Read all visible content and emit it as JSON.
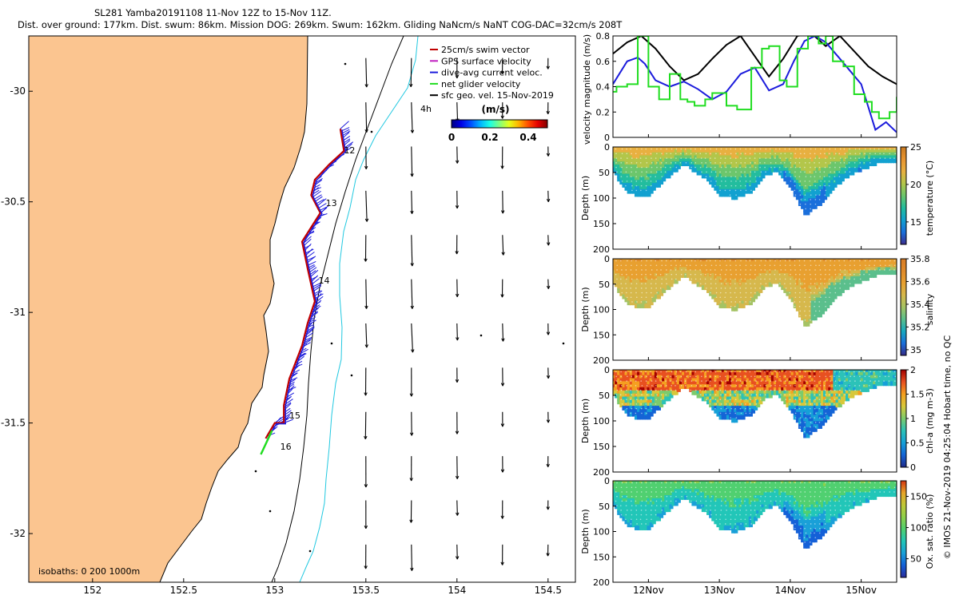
{
  "header": {
    "title_line1": "SL281 Yamba20191108 11-Nov 12Z to 15-Nov 11Z.",
    "title_line2": "Dist. over ground: 177km. Dist. swum: 86km. Mission DOG: 269km. Swum: 162km. Gliding NaNcm/s NaNT COG-DAC=32cm/s 208T"
  },
  "colors": {
    "land": "#fbc590",
    "track_dac": "#1c1cdc",
    "track_red": "#c00000",
    "gps": "#c020c0",
    "net": "#20dd20",
    "isobath_200": "#20c8e0",
    "isobath_1000": "#000000"
  },
  "chart_data": [
    {
      "type": "map",
      "title": "",
      "xlim": [
        151.65,
        154.65
      ],
      "ylim": [
        -32.22,
        -29.75
      ],
      "xticks": [
        152,
        152.5,
        153,
        153.5,
        154,
        154.5
      ],
      "xtick_labels": [
        "152",
        "152.5",
        "153",
        "153.5",
        "154",
        "154.5"
      ],
      "yticks": [
        -30,
        -30.5,
        -31,
        -31.5,
        -32
      ],
      "ytick_labels": [
        "-30",
        "-30.5",
        "-31",
        "-31.5",
        "-32"
      ],
      "legend": {
        "placement": "top-right",
        "entries": [
          {
            "label": "25cm/s swim vector",
            "color": "#c00000"
          },
          {
            "label": "GPS surface velocity",
            "color": "#c020c0"
          },
          {
            "label": "dive-avg current veloc.",
            "color": "#1c1cdc"
          },
          {
            "label": "net glider velocity",
            "color": "#20dd20"
          },
          {
            "label": "sfc geo. vel. 15-Nov-2019",
            "color": "#000000"
          }
        ]
      },
      "colorbar": {
        "label": "(m/s)",
        "ticks": [
          "0",
          "0.2",
          "0.4"
        ],
        "range": [
          0,
          0.5
        ]
      },
      "isobath_label": "isobaths: 0   200  1000m",
      "day_labels": [
        {
          "text": "12",
          "lon": 153.38,
          "lat": -30.28
        },
        {
          "text": "13",
          "lon": 153.28,
          "lat": -30.52
        },
        {
          "text": "14",
          "lon": 153.24,
          "lat": -30.87
        },
        {
          "text": "15",
          "lon": 153.08,
          "lat": -31.48
        },
        {
          "text": "16",
          "lon": 153.03,
          "lat": -31.62
        }
      ],
      "vector_label": "4h",
      "track": [
        {
          "lon": 153.36,
          "lat": -30.17
        },
        {
          "lon": 153.38,
          "lat": -30.27
        },
        {
          "lon": 153.3,
          "lat": -30.33
        },
        {
          "lon": 153.22,
          "lat": -30.4
        },
        {
          "lon": 153.2,
          "lat": -30.47
        },
        {
          "lon": 153.25,
          "lat": -30.55
        },
        {
          "lon": 153.15,
          "lat": -30.68
        },
        {
          "lon": 153.18,
          "lat": -30.8
        },
        {
          "lon": 153.22,
          "lat": -30.95
        },
        {
          "lon": 153.18,
          "lat": -31.05
        },
        {
          "lon": 153.15,
          "lat": -31.15
        },
        {
          "lon": 153.08,
          "lat": -31.3
        },
        {
          "lon": 153.05,
          "lat": -31.42
        },
        {
          "lon": 153.05,
          "lat": -31.5
        },
        {
          "lon": 153.0,
          "lat": -31.5
        },
        {
          "lon": 152.95,
          "lat": -31.57
        }
      ],
      "geo_vectors": {
        "lons": [
          153.5,
          153.75,
          154.0,
          154.25,
          154.5
        ],
        "lats": [
          -29.85,
          -30.05,
          -30.25,
          -30.45,
          -30.65,
          -30.85,
          -31.05,
          -31.25,
          -31.45,
          -31.65,
          -31.85,
          -32.05,
          -32.22
        ],
        "note_visible": "sfc geo. vel. 15-Nov-2019"
      }
    },
    {
      "type": "line",
      "title": "",
      "ylabel": "velocity magnitude (m/s)",
      "ylim": [
        0,
        0.8
      ],
      "yticks": [
        "0",
        "0.2",
        "0.4",
        "0.6",
        "0.8"
      ],
      "xlim": [
        11.5,
        15.5
      ],
      "xticks": [
        12,
        13,
        14,
        15
      ],
      "xtick_labels": [
        "12Nov",
        "13Nov",
        "14Nov",
        "15Nov"
      ],
      "series": [
        {
          "name": "",
          "color": "#000000",
          "x": [
            11.5,
            11.7,
            11.9,
            12.1,
            12.3,
            12.5,
            12.7,
            12.9,
            13.1,
            13.3,
            13.5,
            13.7,
            13.9,
            14.1,
            14.3,
            14.5,
            14.7,
            14.9,
            15.1,
            15.3,
            15.5
          ],
          "values": [
            0.66,
            0.75,
            0.8,
            0.7,
            0.56,
            0.45,
            0.5,
            0.62,
            0.73,
            0.8,
            0.64,
            0.48,
            0.62,
            0.8,
            0.82,
            0.72,
            0.8,
            0.68,
            0.56,
            0.48,
            0.42
          ]
        },
        {
          "name": "",
          "color": "#1c1cdc",
          "x": [
            11.5,
            11.7,
            11.85,
            11.95,
            12.1,
            12.3,
            12.5,
            12.7,
            12.9,
            13.1,
            13.3,
            13.5,
            13.7,
            13.9,
            14.05,
            14.2,
            14.35,
            14.5,
            14.7,
            14.85,
            15.0,
            15.2,
            15.35,
            15.5
          ],
          "values": [
            0.42,
            0.6,
            0.63,
            0.58,
            0.45,
            0.4,
            0.44,
            0.38,
            0.3,
            0.36,
            0.5,
            0.55,
            0.37,
            0.42,
            0.6,
            0.76,
            0.8,
            0.75,
            0.62,
            0.52,
            0.42,
            0.06,
            0.12,
            0.04
          ]
        },
        {
          "name": "",
          "color": "#20dd20",
          "step": true,
          "x": [
            11.5,
            11.55,
            11.7,
            11.85,
            11.9,
            12.0,
            12.15,
            12.3,
            12.45,
            12.55,
            12.65,
            12.8,
            12.9,
            13.1,
            13.25,
            13.45,
            13.6,
            13.7,
            13.85,
            13.95,
            14.1,
            14.25,
            14.4,
            14.5,
            14.6,
            14.75,
            14.9,
            15.05,
            15.15,
            15.25,
            15.4,
            15.5
          ],
          "values": [
            0.36,
            0.4,
            0.42,
            0.8,
            0.8,
            0.4,
            0.3,
            0.5,
            0.3,
            0.28,
            0.25,
            0.3,
            0.35,
            0.25,
            0.22,
            0.55,
            0.7,
            0.72,
            0.45,
            0.4,
            0.7,
            0.8,
            0.74,
            0.8,
            0.6,
            0.56,
            0.34,
            0.28,
            0.2,
            0.15,
            0.2,
            0.32
          ]
        }
      ]
    },
    {
      "type": "heatmap",
      "ylabel": "Depth (m)",
      "colorbar_label": "temperature (°C)",
      "ylim": [
        200,
        0
      ],
      "yticks": [
        "0",
        "50",
        "100",
        "150",
        "200"
      ],
      "colorbar_ticks": [
        "15",
        "20",
        "25"
      ],
      "colorbar_range": [
        12,
        25
      ]
    },
    {
      "type": "heatmap",
      "ylabel": "Depth (m)",
      "colorbar_label": "salinity",
      "ylim": [
        200,
        0
      ],
      "yticks": [
        "0",
        "50",
        "100",
        "150",
        "200"
      ],
      "colorbar_ticks": [
        "35",
        "35.2",
        "35.4",
        "35.6",
        "35.8"
      ],
      "colorbar_range": [
        34.95,
        35.8
      ]
    },
    {
      "type": "heatmap",
      "ylabel": "Depth (m)",
      "colorbar_label": "chl-a (mg m-3)",
      "ylim": [
        200,
        0
      ],
      "yticks": [
        "0",
        "50",
        "100",
        "150",
        "200"
      ],
      "colorbar_ticks": [
        "0",
        "0.5",
        "1",
        "1.5",
        "2"
      ],
      "colorbar_range": [
        0,
        2
      ]
    },
    {
      "type": "heatmap",
      "ylabel": "Depth (m)",
      "colorbar_label": "Ox. sat. ratio (%)",
      "ylim": [
        200,
        0
      ],
      "yticks": [
        "0",
        "50",
        "100",
        "150",
        "200"
      ],
      "colorbar_ticks": [
        "50",
        "100",
        "150"
      ],
      "colorbar_range": [
        20,
        175
      ]
    }
  ],
  "section_profile": {
    "times": [
      11.5,
      11.65,
      11.85,
      12.0,
      12.15,
      12.35,
      12.5,
      12.65,
      12.85,
      13.0,
      13.2,
      13.45,
      13.6,
      13.8,
      14.0,
      14.2,
      14.4,
      14.6,
      14.8,
      15.0,
      15.2,
      15.5
    ],
    "bottom_depth": [
      45,
      80,
      95,
      90,
      70,
      45,
      30,
      45,
      65,
      90,
      98,
      85,
      55,
      45,
      75,
      130,
      110,
      75,
      55,
      40,
      30,
      28
    ]
  },
  "footer": {
    "credit": "© IMOS 21-Nov-2019 04:25:04 Hobart time, no QC"
  }
}
